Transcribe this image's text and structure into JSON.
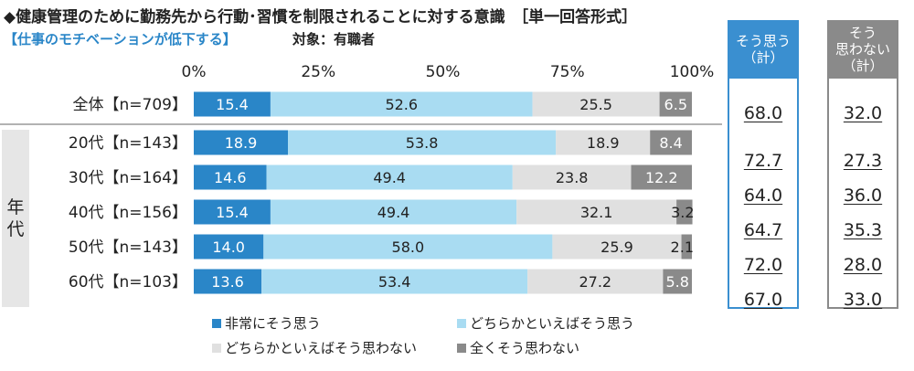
{
  "title": "◆健康管理のために勤務先から行動･習慣を制限されることに対する意識　［単一回答形式］",
  "subtitle": "【仕事のモチベーションが低下する】",
  "target": "対象：有職者",
  "group_label": [
    "年",
    "代"
  ],
  "summary": {
    "col1": {
      "header": [
        "そう思う",
        "（計）"
      ],
      "values": [
        "68.0",
        "72.7",
        "64.0",
        "64.7",
        "72.0",
        "67.0"
      ]
    },
    "col2": {
      "header": [
        "そう",
        "思わない",
        "（計）"
      ],
      "values": [
        "32.0",
        "27.3",
        "36.0",
        "35.3",
        "28.0",
        "33.0"
      ]
    }
  },
  "colors": {
    "strongly_agree": "#2a86c8",
    "somewhat_agree": "#a9dcf2",
    "somewhat_disagree": "#e0e0e0",
    "strongly_disagree": "#8a8a8a"
  },
  "chart_data": {
    "type": "bar",
    "orientation": "horizontal-stacked-100",
    "xlim": [
      0,
      100
    ],
    "x_ticks": [
      "0%",
      "25%",
      "50%",
      "75%",
      "100%"
    ],
    "categories": [
      "全体【n=709】",
      "20代【n=143】",
      "30代【n=164】",
      "40代【n=156】",
      "50代【n=143】",
      "60代【n=103】"
    ],
    "series": [
      {
        "name": "非常にそう思う",
        "color": "#2a86c8",
        "values": [
          15.4,
          18.9,
          14.6,
          15.4,
          14.0,
          13.6
        ]
      },
      {
        "name": "どちらかといえばそう思う",
        "color": "#a9dcf2",
        "values": [
          52.6,
          53.8,
          49.4,
          49.4,
          58.0,
          53.4
        ]
      },
      {
        "name": "どちらかといえばそう思わない",
        "color": "#e0e0e0",
        "values": [
          25.5,
          18.9,
          23.8,
          32.1,
          25.9,
          27.2
        ]
      },
      {
        "name": "全くそう思わない",
        "color": "#8a8a8a",
        "values": [
          6.5,
          8.4,
          12.2,
          3.2,
          2.1,
          5.8
        ]
      }
    ],
    "legend": "bottom"
  }
}
